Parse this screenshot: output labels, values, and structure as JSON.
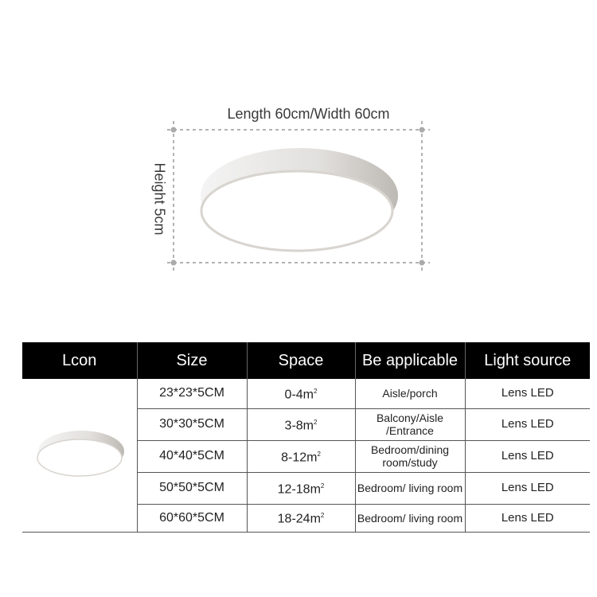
{
  "dimensions": {
    "length_width_label": "Length 60cm/Width 60cm",
    "height_label": "Height 5cm"
  },
  "table": {
    "headers": [
      "Lcon",
      "Size",
      "Space",
      "Be applicable",
      "Light source"
    ],
    "rows": [
      {
        "size": "23*23*5CM",
        "space": "0-4m",
        "applicable": "Aisle/porch",
        "light": "Lens LED"
      },
      {
        "size": "30*30*5CM",
        "space": "3-8m",
        "applicable": "Balcony/Aisle /Entrance",
        "light": "Lens LED"
      },
      {
        "size": "40*40*5CM",
        "space": "8-12m",
        "applicable": "Bedroom/dining room/study",
        "light": "Lens LED"
      },
      {
        "size": "50*50*5CM",
        "space": "12-18m",
        "applicable": "Bedroom/ living room",
        "light": "Lens LED"
      },
      {
        "size": "60*60*5CM",
        "space": "18-24m",
        "applicable": "Bedroom/ living room",
        "light": "Lens LED"
      }
    ],
    "area_unit_superscript": "2"
  },
  "colors": {
    "header_bg": "#000000",
    "header_text": "#ffffff",
    "dash": "#999999"
  }
}
